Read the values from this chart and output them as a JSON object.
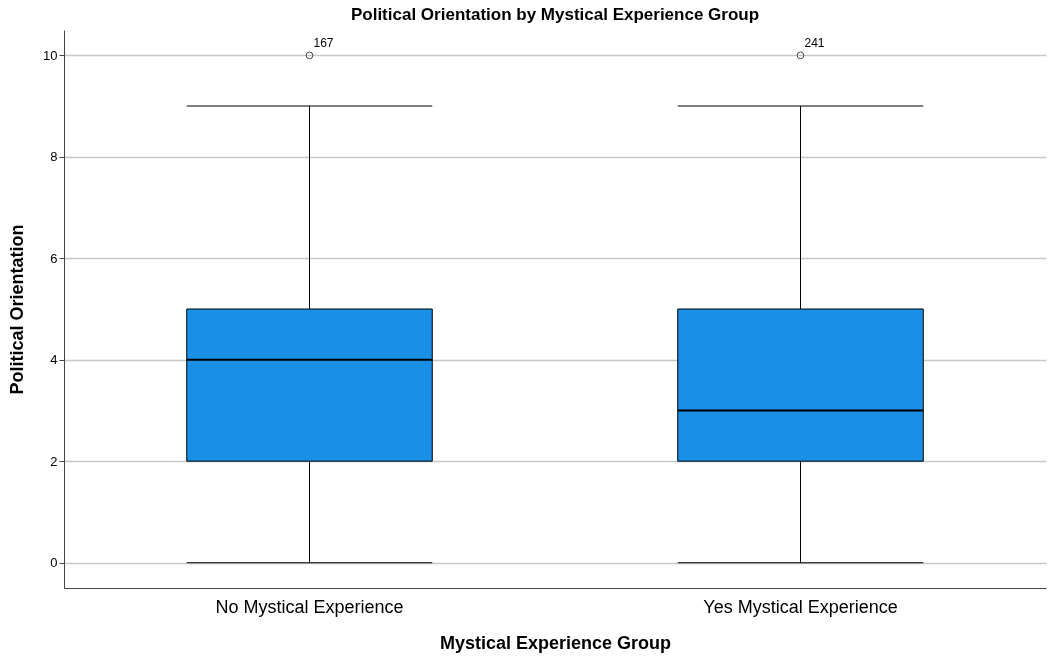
{
  "chart_data": {
    "type": "box",
    "title": "Political Orientation by Mystical Experience Group",
    "xlabel": "Mystical Experience Group",
    "ylabel": "Political Orientation",
    "categories": [
      "No Mystical Experience",
      "Yes Mystical Experience"
    ],
    "boxes": [
      {
        "low": 0,
        "q1": 2,
        "median": 4,
        "q3": 5,
        "high": 9,
        "outliers": [
          10
        ]
      },
      {
        "low": 0,
        "q1": 2,
        "median": 3,
        "q3": 5,
        "high": 9,
        "outliers": [
          10
        ]
      }
    ],
    "color": "#1a8fe6",
    "ylim": [
      -0.5,
      10.5
    ],
    "yticks": [
      0,
      2,
      4,
      6,
      8,
      10
    ],
    "grid": "y",
    "marker": "circle",
    "annotations": [
      "167",
      "241"
    ]
  }
}
